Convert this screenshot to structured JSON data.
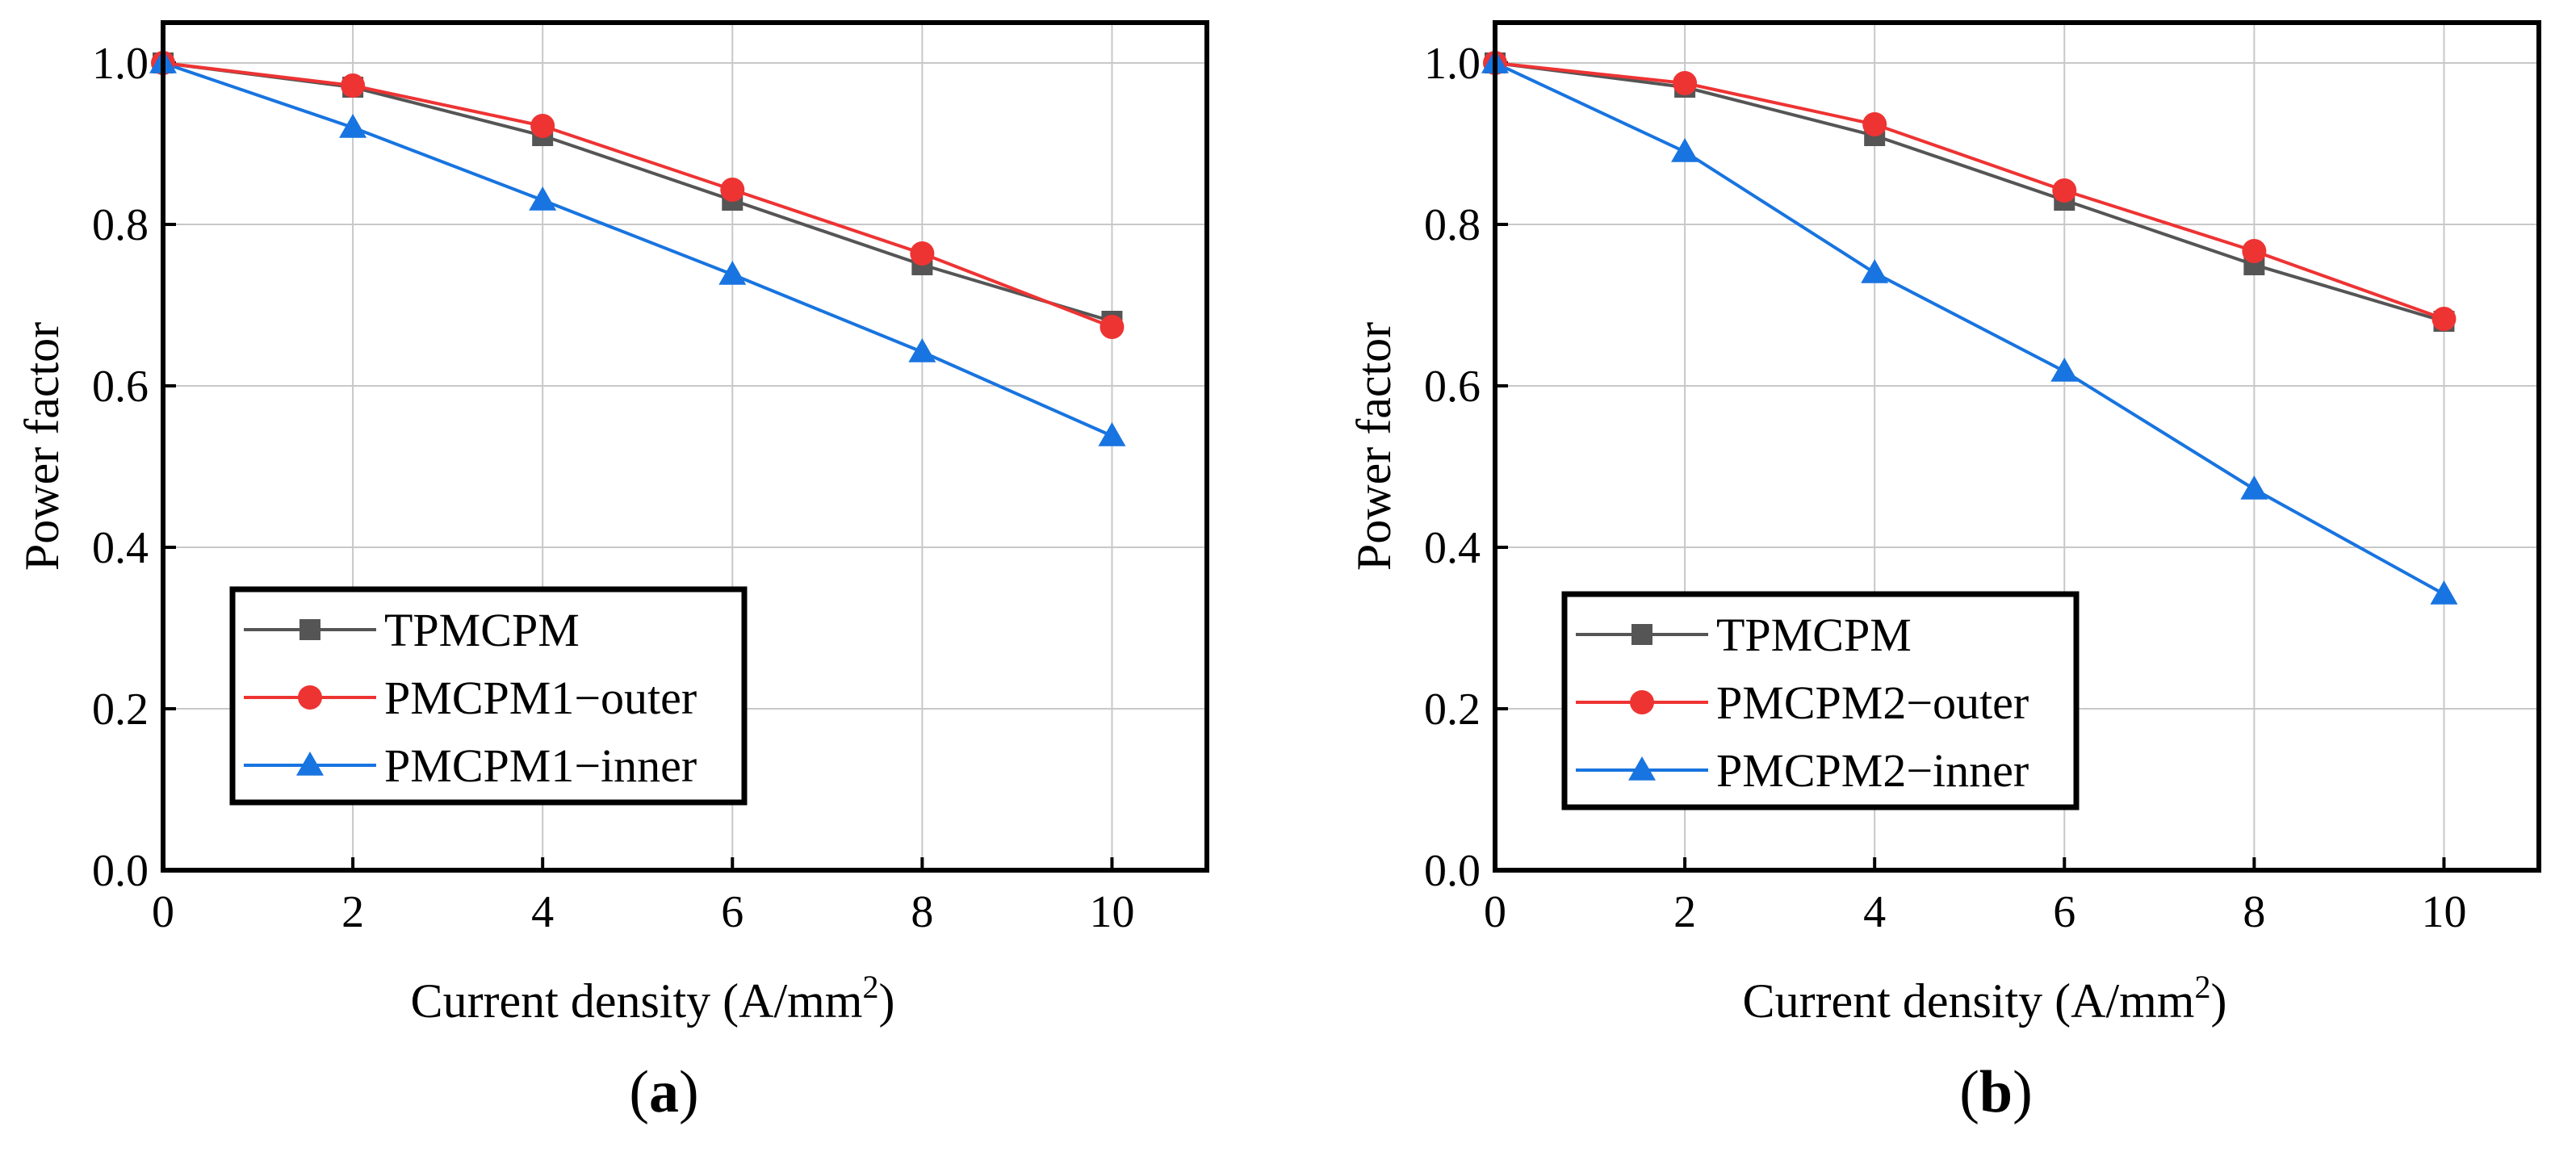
{
  "chart_data": [
    {
      "panel_label": "a",
      "type": "line",
      "title": "",
      "xlabel": "Current density (A/mm",
      "xlabel_sup": "2",
      "xlabel_end": ")",
      "ylabel": "Power factor",
      "xlim": [
        0,
        11
      ],
      "ylim": [
        0,
        1.05
      ],
      "xticks": [
        "0",
        "2",
        "4",
        "6",
        "8",
        "10"
      ],
      "yticks": [
        "0.0",
        "0.2",
        "0.4",
        "0.6",
        "0.8",
        "1.0"
      ],
      "x": [
        0,
        2,
        4,
        6,
        8,
        10
      ],
      "grid": true,
      "legend_position": "bottom-left",
      "series": [
        {
          "name": "TPMCPM",
          "color": "#555555",
          "marker": "square",
          "values": [
            1.0,
            0.97,
            0.91,
            0.83,
            0.75,
            0.68
          ]
        },
        {
          "name": "PMCPM1−outer",
          "color": "#ee3333",
          "marker": "circle",
          "values": [
            1.0,
            0.972,
            0.922,
            0.843,
            0.764,
            0.673
          ]
        },
        {
          "name": "PMCPM1−inner",
          "color": "#1874e0",
          "marker": "triangle",
          "values": [
            1.0,
            0.92,
            0.83,
            0.738,
            0.642,
            0.538
          ]
        }
      ]
    },
    {
      "panel_label": "b",
      "type": "line",
      "title": "",
      "xlabel": "Current density (A/mm",
      "xlabel_sup": "2",
      "xlabel_end": ")",
      "ylabel": "Power factor",
      "xlim": [
        0,
        11
      ],
      "ylim": [
        0,
        1.05
      ],
      "xticks": [
        "0",
        "2",
        "4",
        "6",
        "8",
        "10"
      ],
      "yticks": [
        "0.0",
        "0.2",
        "0.4",
        "0.6",
        "0.8",
        "1.0"
      ],
      "x": [
        0,
        2,
        4,
        6,
        8,
        10
      ],
      "grid": true,
      "legend_position": "bottom-left",
      "series": [
        {
          "name": "TPMCPM",
          "color": "#555555",
          "marker": "square",
          "values": [
            1.0,
            0.97,
            0.91,
            0.83,
            0.75,
            0.68
          ]
        },
        {
          "name": "PMCPM2−outer",
          "color": "#ee3333",
          "marker": "circle",
          "values": [
            1.0,
            0.975,
            0.924,
            0.842,
            0.767,
            0.683
          ]
        },
        {
          "name": "PMCPM2−inner",
          "color": "#1874e0",
          "marker": "triangle",
          "values": [
            1.0,
            0.89,
            0.74,
            0.618,
            0.472,
            0.342
          ]
        }
      ]
    }
  ]
}
